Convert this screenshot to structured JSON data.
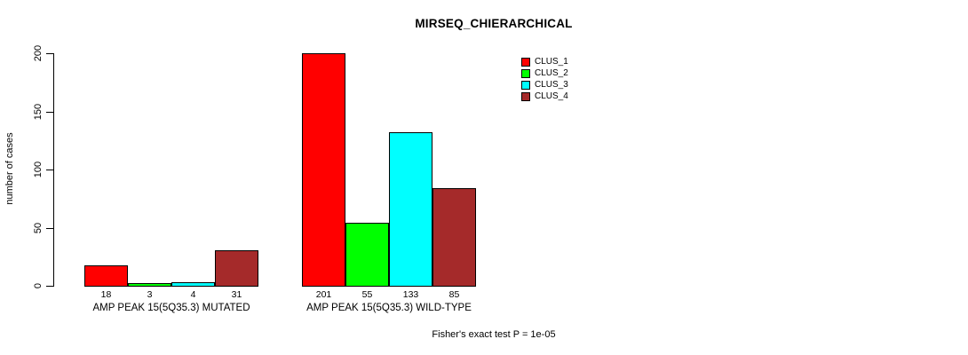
{
  "chart_data": {
    "type": "bar",
    "title": "MIRSEQ_CHIERARCHICAL",
    "ylabel": "number of cases",
    "xlabel": "",
    "categories": [
      "AMP PEAK 15(5Q35.3) MUTATED",
      "AMP PEAK 15(5Q35.3) WILD-TYPE"
    ],
    "series": [
      {
        "name": "CLUS_1",
        "color": "#ff0000",
        "values": [
          18,
          201
        ]
      },
      {
        "name": "CLUS_2",
        "color": "#00ff00",
        "values": [
          3,
          55
        ]
      },
      {
        "name": "CLUS_3",
        "color": "#00ffff",
        "values": [
          4,
          133
        ]
      },
      {
        "name": "CLUS_4",
        "color": "#a52a2a",
        "values": [
          31,
          85
        ]
      }
    ],
    "yticks": [
      0,
      50,
      100,
      150,
      200
    ],
    "ylim": [
      0,
      200
    ],
    "grid": "off",
    "legend_position": "top-right",
    "value_labels_shown": true,
    "annotation": "Fisher's exact test P = 1e-05"
  },
  "colors": {
    "axis": "#000000",
    "bar_border": "#000000",
    "background": "#ffffff"
  }
}
